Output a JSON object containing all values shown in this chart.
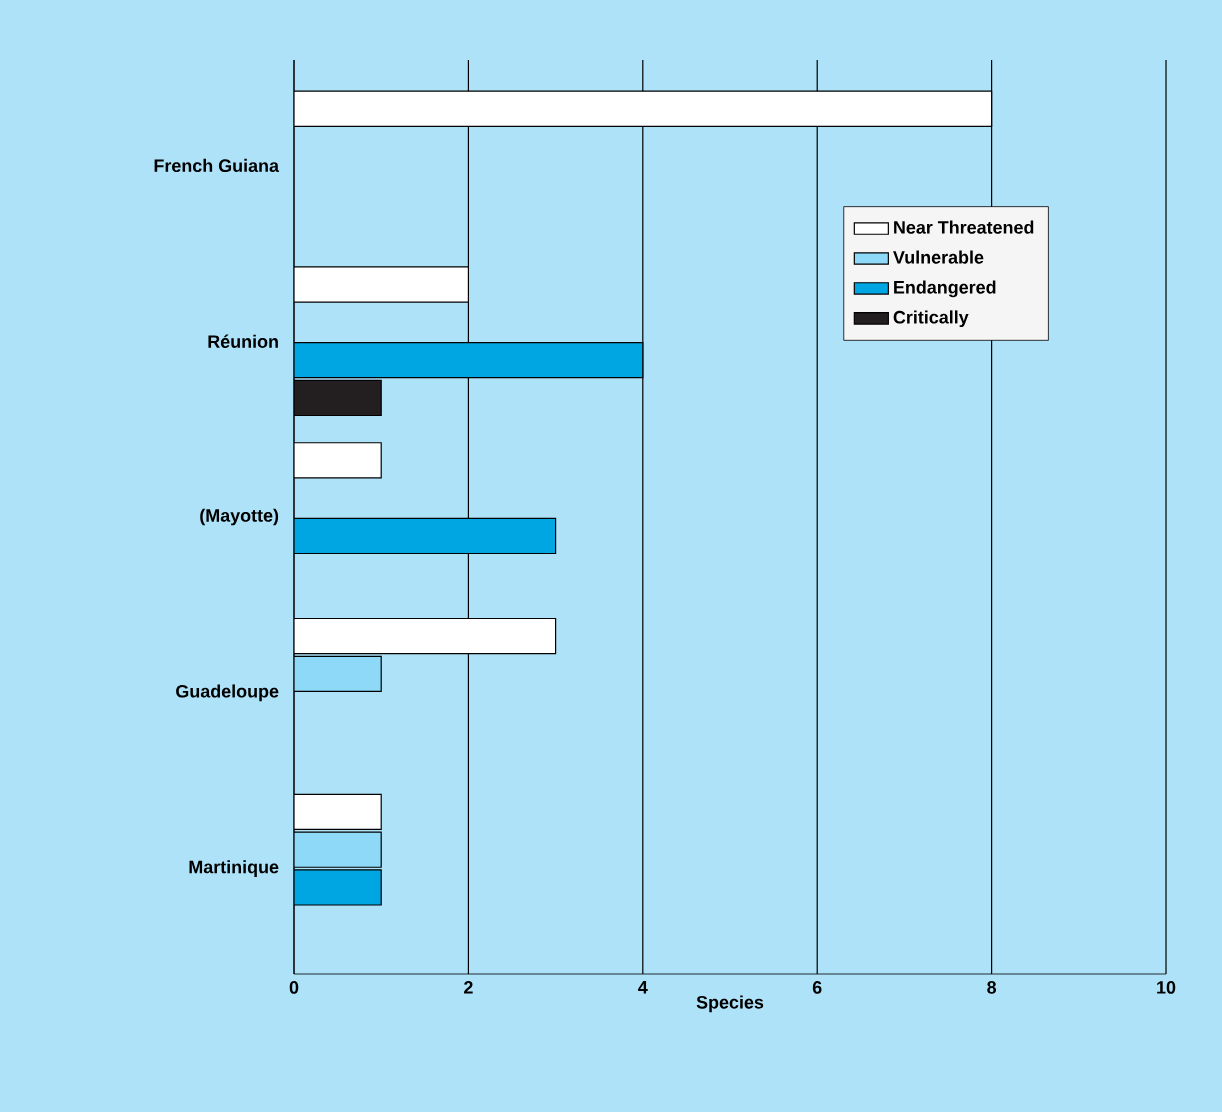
{
  "chart_data": {
    "type": "bar",
    "orientation": "horizontal",
    "xlabel": "Species",
    "categories": [
      "French Guiana",
      "Réunion",
      "(Mayotte)",
      "Guadeloupe",
      "Martinique"
    ],
    "series": [
      {
        "name": "Near Threatened",
        "color": "#ffffff",
        "values": [
          8,
          2,
          1,
          3,
          1
        ]
      },
      {
        "name": "Vulnerable",
        "color": "#8ed8f8",
        "values": [
          null,
          null,
          null,
          1,
          1
        ]
      },
      {
        "name": "Endangered",
        "color": "#00a6e2",
        "values": [
          null,
          4,
          3,
          null,
          1
        ]
      },
      {
        "name": "Critically",
        "color": "#231f20",
        "values": [
          null,
          1,
          null,
          null,
          null
        ]
      }
    ],
    "xlim": [
      0,
      10
    ],
    "xticks": [
      0,
      2,
      4,
      6,
      8,
      10
    ],
    "grid": "x",
    "legend": "top right"
  }
}
